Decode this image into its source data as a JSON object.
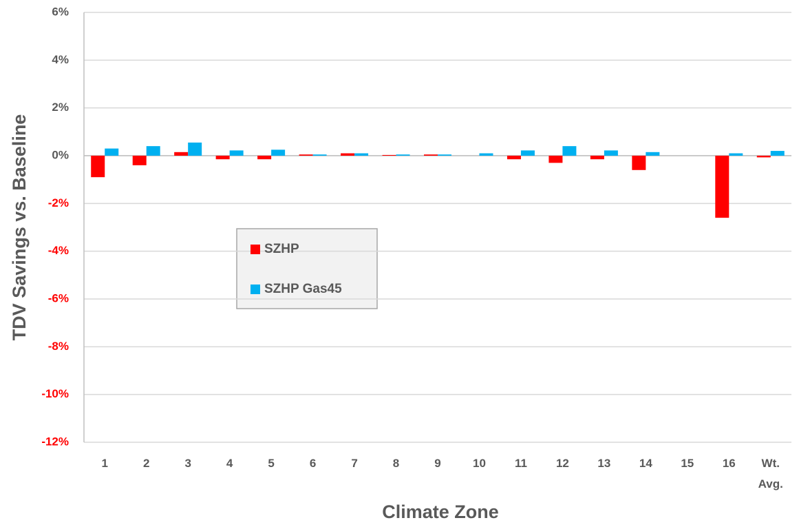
{
  "chart_data": {
    "type": "bar",
    "ylabel": "TDV Savings vs. Baseline",
    "xlabel": "Climate Zone",
    "categories": [
      "1",
      "2",
      "3",
      "4",
      "5",
      "6",
      "7",
      "8",
      "9",
      "10",
      "11",
      "12",
      "13",
      "14",
      "15",
      "16",
      "Wt. Avg."
    ],
    "series": [
      {
        "name": "SZHP",
        "color": "#ff0000",
        "values": [
          -0.9,
          -0.4,
          0.15,
          -0.15,
          -0.15,
          0.05,
          0.1,
          0.03,
          0.05,
          0,
          -0.15,
          -0.3,
          -0.15,
          -0.6,
          0,
          -2.6,
          -0.07
        ]
      },
      {
        "name": "SZHP Gas45",
        "color": "#00b0f0",
        "values": [
          0.3,
          0.4,
          0.55,
          0.22,
          0.25,
          0.05,
          0.1,
          0.05,
          0.05,
          0.1,
          0.22,
          0.4,
          0.22,
          0.15,
          0,
          0.1,
          0.2
        ]
      }
    ],
    "ylim": [
      -12,
      6
    ],
    "yticks": [
      {
        "value": -12,
        "label": "-12%"
      },
      {
        "value": -10,
        "label": "-10%"
      },
      {
        "value": -8,
        "label": "-8%"
      },
      {
        "value": -6,
        "label": "-6%"
      },
      {
        "value": -4,
        "label": "-4%"
      },
      {
        "value": -2,
        "label": "-2%"
      },
      {
        "value": 0,
        "label": "0%"
      },
      {
        "value": 2,
        "label": "2%"
      },
      {
        "value": 4,
        "label": "4%"
      },
      {
        "value": 6,
        "label": "6%"
      }
    ],
    "grid": true,
    "tick_color": "#595959",
    "negative_tick_color": "#ff0000"
  }
}
